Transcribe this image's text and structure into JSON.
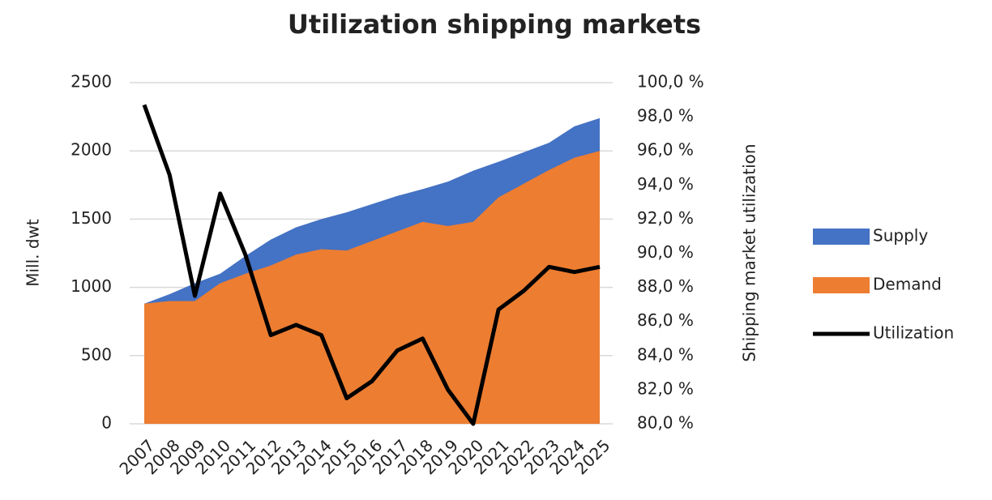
{
  "chart_data": {
    "type": "area_line",
    "title": "Utilization shipping markets",
    "y_label": "Mill. dwt",
    "y2_label": "Shipping market utilization",
    "categories": [
      "2007",
      "2008",
      "2009",
      "2010",
      "2011",
      "2012",
      "2013",
      "2014",
      "2015",
      "2016",
      "2017",
      "2018",
      "2019",
      "2020",
      "2021",
      "2022",
      "2023",
      "2024",
      "2025"
    ],
    "series": [
      {
        "name": "Supply",
        "color": "#4472c4",
        "kind": "area",
        "values": [
          880,
          950,
          1030,
          1100,
          1230,
          1350,
          1440,
          1500,
          1550,
          1610,
          1670,
          1720,
          1775,
          1855,
          1920,
          1990,
          2060,
          2180,
          2240
        ]
      },
      {
        "name": "Demand",
        "color": "#ed7d31",
        "kind": "area",
        "values": [
          880,
          900,
          900,
          1030,
          1100,
          1160,
          1240,
          1280,
          1270,
          1340,
          1410,
          1480,
          1450,
          1480,
          1660,
          1760,
          1860,
          1950,
          2000
        ]
      },
      {
        "name": "Utilization",
        "color": "#000000",
        "kind": "line",
        "axis": "y2",
        "values": [
          98.7,
          94.6,
          87.5,
          93.5,
          89.9,
          85.2,
          85.8,
          85.2,
          81.5,
          82.5,
          84.3,
          85.0,
          82.0,
          80.0,
          86.7,
          87.8,
          89.2,
          88.9,
          89.2
        ]
      }
    ],
    "ylim": [
      0,
      2500
    ],
    "yticks": [
      0,
      500,
      1000,
      1500,
      2000,
      2500
    ],
    "y2lim": [
      80,
      100
    ],
    "y2ticks": [
      {
        "value": 80,
        "label": "80,0 %"
      },
      {
        "value": 82,
        "label": "82,0 %"
      },
      {
        "value": 84,
        "label": "84,0 %"
      },
      {
        "value": 86,
        "label": "86,0 %"
      },
      {
        "value": 88,
        "label": "88,0 %"
      },
      {
        "value": 90,
        "label": "90,0 %"
      },
      {
        "value": 92,
        "label": "92,0 %"
      },
      {
        "value": 94,
        "label": "94,0 %"
      },
      {
        "value": 96,
        "label": "96,0 %"
      },
      {
        "value": 98,
        "label": "98,0 %"
      },
      {
        "value": 100,
        "label": "100,0 %"
      }
    ],
    "grid": true,
    "legend": "right"
  }
}
